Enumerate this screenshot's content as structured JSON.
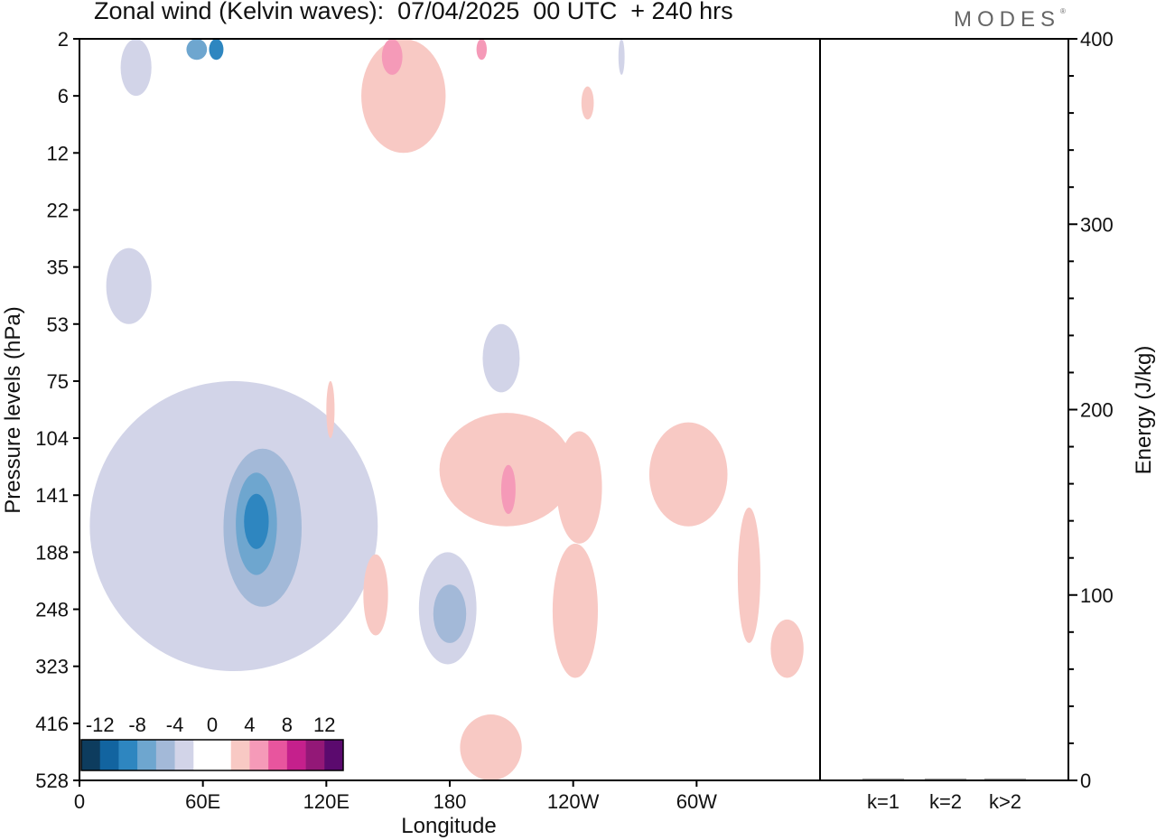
{
  "header": {
    "title": "Zonal wind (Kelvin waves):  07/04/2025  00 UTC  + 240 hrs",
    "logo": "MODES",
    "logo_mark": "®"
  },
  "chart_data": [
    {
      "type": "heatmap",
      "variable": "Zonal wind (Kelvin waves)",
      "xlabel": "Longitude",
      "ylabel": "Pressure levels (hPa)",
      "x_ticks": [
        "0",
        "60E",
        "120E",
        "180",
        "120W",
        "60W"
      ],
      "x_tick_degrees": [
        0,
        60,
        120,
        180,
        240,
        300
      ],
      "xlim": [
        0,
        360
      ],
      "y_ticks": [
        "2",
        "6",
        "12",
        "22",
        "35",
        "53",
        "75",
        "104",
        "141",
        "188",
        "248",
        "323",
        "416",
        "528"
      ],
      "y_tick_values": [
        2,
        6,
        12,
        22,
        35,
        53,
        75,
        104,
        141,
        188,
        248,
        323,
        416,
        528
      ],
      "colorbar": {
        "labels": [
          "-12",
          "-8",
          "-4",
          "0",
          "4",
          "8",
          "12"
        ],
        "colors": [
          "#0d3c5e",
          "#1264a0",
          "#2e86c0",
          "#6ea6cf",
          "#a3b9d8",
          "#d2d4e8",
          "#ffffff",
          "#ffffff",
          "#f8c9c4",
          "#f59ab8",
          "#e8559e",
          "#c5208c",
          "#931877",
          "#5b0a6e"
        ]
      },
      "regions": [
        {
          "sign": "negative",
          "level": 1,
          "lon": [
            20,
            35
          ],
          "p": [
            2,
            6
          ]
        },
        {
          "sign": "negative",
          "level": 3,
          "lon": [
            52,
            62
          ],
          "p": [
            2,
            3
          ]
        },
        {
          "sign": "negative",
          "level": 4,
          "lon": [
            63,
            70
          ],
          "p": [
            2,
            3
          ]
        },
        {
          "sign": "positive",
          "level": 2,
          "lon": [
            147,
            157
          ],
          "p": [
            2,
            4
          ]
        },
        {
          "sign": "positive",
          "level": 2,
          "lon": [
            193,
            198
          ],
          "p": [
            2,
            3
          ]
        },
        {
          "sign": "positive",
          "level": 1,
          "lon": [
            137,
            178
          ],
          "p": [
            2,
            12
          ]
        },
        {
          "sign": "positive",
          "level": 1,
          "lon": [
            244,
            250
          ],
          "p": [
            5,
            8
          ]
        },
        {
          "sign": "negative",
          "level": 1,
          "lon": [
            262,
            265
          ],
          "p": [
            2,
            4
          ]
        },
        {
          "sign": "negative",
          "level": 1,
          "lon": [
            13,
            35
          ],
          "p": [
            30,
            53
          ]
        },
        {
          "sign": "negative",
          "level": 1,
          "lon": [
            196,
            214
          ],
          "p": [
            53,
            80
          ]
        },
        {
          "sign": "negative",
          "level": 1,
          "lon": [
            5,
            145
          ],
          "p": [
            75,
            330
          ]
        },
        {
          "sign": "negative",
          "level": 2,
          "lon": [
            70,
            108
          ],
          "p": [
            110,
            245
          ]
        },
        {
          "sign": "negative",
          "level": 3,
          "lon": [
            76,
            96
          ],
          "p": [
            125,
            210
          ]
        },
        {
          "sign": "negative",
          "level": 4,
          "lon": [
            80,
            92
          ],
          "p": [
            140,
            185
          ]
        },
        {
          "sign": "negative",
          "level": 1,
          "lon": [
            165,
            193
          ],
          "p": [
            188,
            320
          ]
        },
        {
          "sign": "negative",
          "level": 2,
          "lon": [
            172,
            188
          ],
          "p": [
            220,
            290
          ]
        },
        {
          "sign": "positive",
          "level": 1,
          "lon": [
            120,
            124
          ],
          "p": [
            75,
            104
          ]
        },
        {
          "sign": "positive",
          "level": 1,
          "lon": [
            175,
            240
          ],
          "p": [
            90,
            165
          ]
        },
        {
          "sign": "positive",
          "level": 2,
          "lon": [
            205,
            212
          ],
          "p": [
            120,
            155
          ]
        },
        {
          "sign": "positive",
          "level": 1,
          "lon": [
            232,
            254
          ],
          "p": [
            100,
            180
          ]
        },
        {
          "sign": "positive",
          "level": 1,
          "lon": [
            277,
            315
          ],
          "p": [
            95,
            165
          ]
        },
        {
          "sign": "positive",
          "level": 1,
          "lon": [
            230,
            252
          ],
          "p": [
            180,
            340
          ]
        },
        {
          "sign": "positive",
          "level": 1,
          "lon": [
            320,
            331
          ],
          "p": [
            150,
            290
          ]
        },
        {
          "sign": "positive",
          "level": 1,
          "lon": [
            336,
            352
          ],
          "p": [
            260,
            340
          ]
        },
        {
          "sign": "positive",
          "level": 1,
          "lon": [
            185,
            215
          ],
          "p": [
            400,
            528
          ]
        },
        {
          "sign": "positive",
          "level": 1,
          "lon": [
            138,
            150
          ],
          "p": [
            190,
            280
          ]
        }
      ]
    },
    {
      "type": "bar",
      "categories": [
        "k=1",
        "k=2",
        "k>2"
      ],
      "values": [
        0.3,
        0.3,
        0.5
      ],
      "ylabel": "Energy (J/kg)",
      "ylim": [
        0,
        400
      ],
      "y_ticks": [
        "0",
        "100",
        "200",
        "300",
        "400"
      ]
    }
  ]
}
